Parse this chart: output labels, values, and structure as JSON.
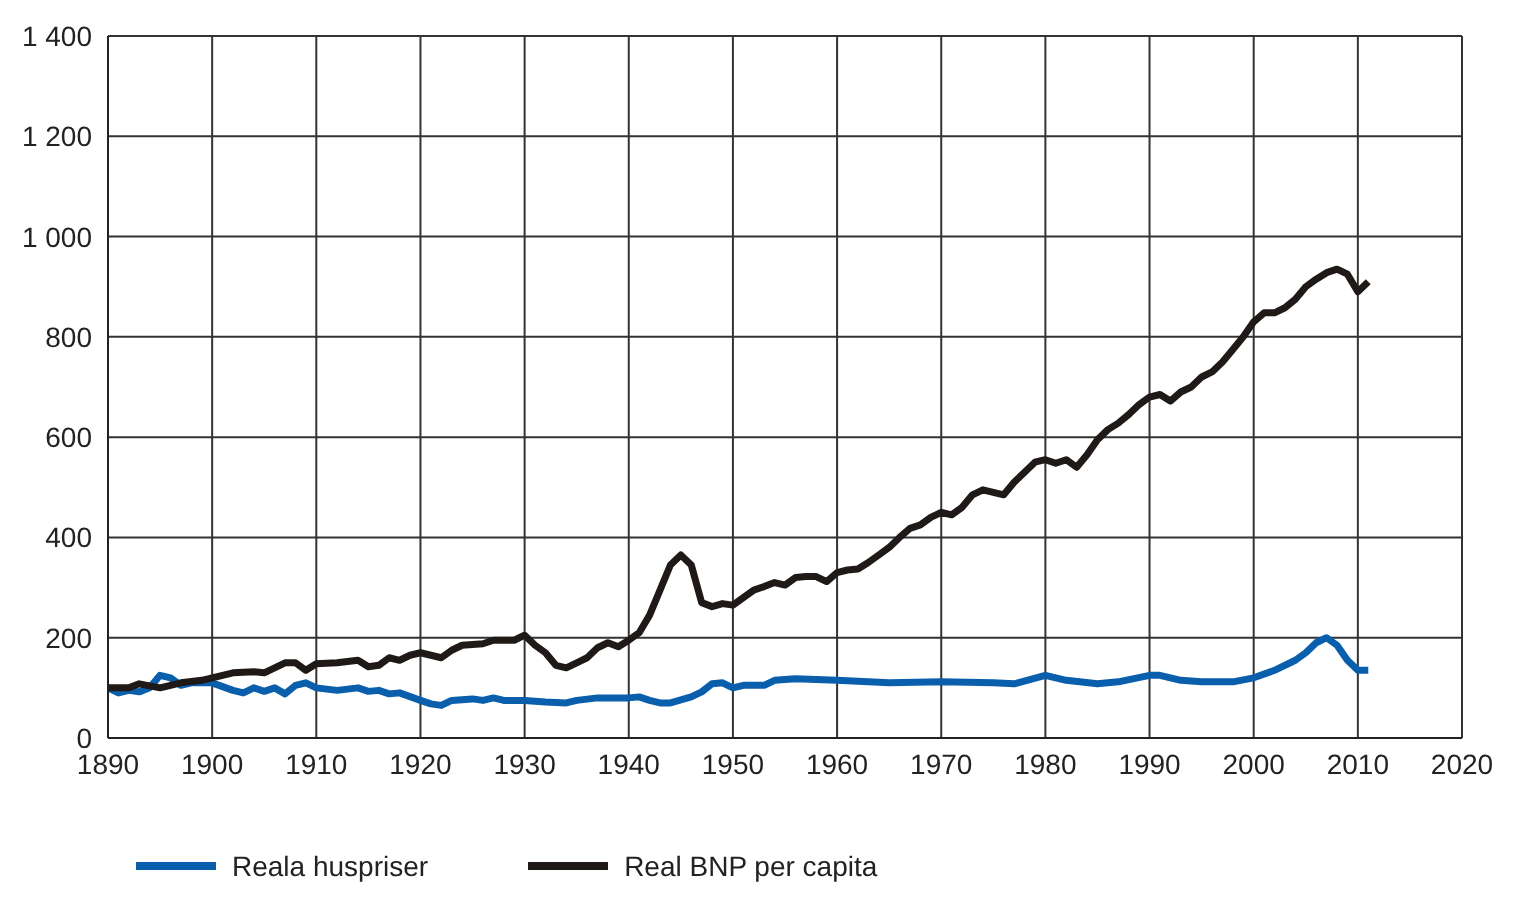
{
  "chart_data": {
    "type": "line",
    "xlim": [
      1890,
      2020
    ],
    "xticks": [
      1890,
      1900,
      1910,
      1920,
      1930,
      1940,
      1950,
      1960,
      1970,
      1980,
      1990,
      2000,
      2010,
      2020
    ],
    "ylim": [
      0,
      1400
    ],
    "yticks": [
      0,
      200,
      400,
      600,
      800,
      {
        "value": 1000,
        "label": "1 000"
      },
      {
        "value": 1200,
        "label": "1 200"
      },
      {
        "value": 1400,
        "label": "1 400"
      }
    ],
    "grid": true,
    "legend": "bottom",
    "marker": "none",
    "line_style": "solid",
    "series": [
      {
        "name": "Reala huspriser",
        "color": "#0a5fad",
        "x": [
          1890,
          1891,
          1892,
          1893,
          1894,
          1895,
          1896,
          1897,
          1898,
          1900,
          1902,
          1903,
          1904,
          1905,
          1906,
          1907,
          1908,
          1909,
          1910,
          1912,
          1914,
          1915,
          1916,
          1917,
          1918,
          1920,
          1921,
          1922,
          1923,
          1925,
          1926,
          1927,
          1928,
          1930,
          1932,
          1934,
          1935,
          1937,
          1940,
          1941,
          1942,
          1943,
          1944,
          1946,
          1947,
          1948,
          1949,
          1950,
          1951,
          1952,
          1953,
          1954,
          1956,
          1960,
          1965,
          1970,
          1975,
          1977,
          1980,
          1982,
          1985,
          1987,
          1990,
          1991,
          1993,
          1995,
          1998,
          2000,
          2002,
          2004,
          2005,
          2006,
          2007,
          2008,
          2009,
          2010,
          2011
        ],
        "values": [
          100,
          90,
          95,
          92,
          100,
          125,
          120,
          105,
          110,
          110,
          95,
          90,
          100,
          93,
          100,
          88,
          105,
          110,
          100,
          95,
          100,
          93,
          95,
          88,
          90,
          75,
          68,
          65,
          75,
          78,
          75,
          80,
          75,
          75,
          72,
          70,
          75,
          80,
          80,
          82,
          75,
          70,
          70,
          82,
          92,
          108,
          110,
          100,
          105,
          105,
          105,
          115,
          118,
          115,
          110,
          112,
          110,
          108,
          125,
          115,
          108,
          112,
          125,
          125,
          115,
          112,
          112,
          120,
          135,
          155,
          170,
          190,
          200,
          185,
          155,
          135,
          135
        ]
      },
      {
        "name": "Real BNP per capita",
        "color": "#1f1a17",
        "x": [
          1890,
          1892,
          1893,
          1895,
          1897,
          1899,
          1900,
          1902,
          1904,
          1905,
          1906,
          1907,
          1908,
          1909,
          1910,
          1912,
          1914,
          1915,
          1916,
          1917,
          1918,
          1919,
          1920,
          1921,
          1922,
          1923,
          1924,
          1926,
          1927,
          1929,
          1930,
          1931,
          1932,
          1933,
          1934,
          1935,
          1936,
          1937,
          1938,
          1939,
          1940,
          1941,
          1942,
          1943,
          1944,
          1945,
          1946,
          1947,
          1948,
          1949,
          1950,
          1951,
          1952,
          1953,
          1954,
          1955,
          1956,
          1957,
          1958,
          1959,
          1960,
          1961,
          1962,
          1963,
          1964,
          1965,
          1966,
          1967,
          1968,
          1969,
          1970,
          1971,
          1972,
          1973,
          1974,
          1975,
          1976,
          1977,
          1978,
          1979,
          1980,
          1981,
          1982,
          1983,
          1984,
          1985,
          1986,
          1987,
          1988,
          1989,
          1990,
          1991,
          1992,
          1993,
          1994,
          1995,
          1996,
          1997,
          1998,
          1999,
          2000,
          2001,
          2002,
          2003,
          2004,
          2005,
          2006,
          2007,
          2008,
          2009,
          2010,
          2011
        ],
        "values": [
          100,
          100,
          108,
          100,
          110,
          115,
          120,
          130,
          132,
          130,
          140,
          150,
          150,
          135,
          148,
          150,
          155,
          142,
          145,
          160,
          155,
          165,
          170,
          165,
          160,
          175,
          185,
          188,
          195,
          195,
          205,
          185,
          170,
          145,
          140,
          150,
          160,
          180,
          190,
          182,
          195,
          210,
          245,
          295,
          345,
          365,
          345,
          270,
          262,
          268,
          265,
          280,
          295,
          302,
          310,
          305,
          320,
          322,
          322,
          312,
          330,
          335,
          337,
          350,
          365,
          380,
          400,
          418,
          425,
          440,
          450,
          445,
          460,
          485,
          495,
          490,
          485,
          510,
          530,
          550,
          555,
          548,
          555,
          540,
          565,
          595,
          615,
          628,
          645,
          665,
          680,
          685,
          672,
          690,
          700,
          720,
          730,
          750,
          775,
          800,
          830,
          848,
          848,
          858,
          875,
          900,
          915,
          928,
          935,
          925,
          890,
          910
        ]
      }
    ]
  }
}
